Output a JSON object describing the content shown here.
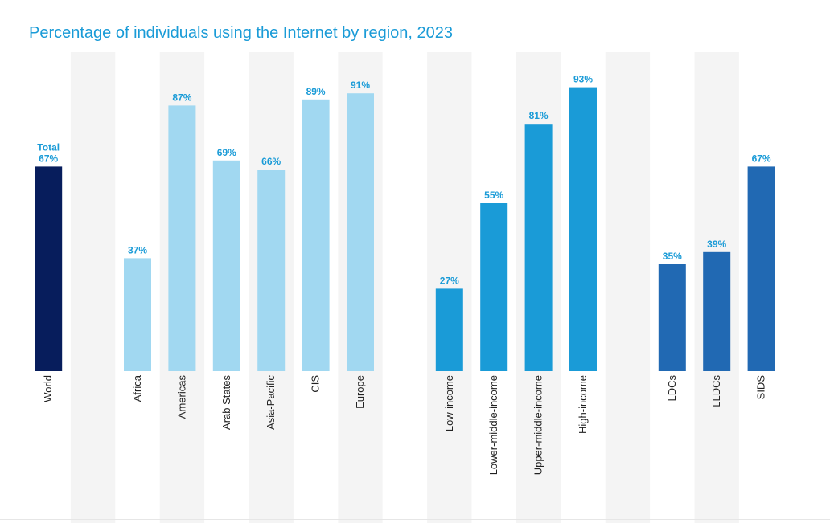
{
  "title": "Percentage of individuals using the Internet by region, 2023",
  "colors": {
    "world": "#071d5c",
    "regions": "#a1d8f1",
    "income": "#1a9bd7",
    "groups": "#2169b3",
    "label": "#1a9bd7",
    "band": "#f4f4f4"
  },
  "chart_data": {
    "type": "bar",
    "title": "Percentage of individuals using the Internet by region, 2023",
    "xlabel": "",
    "ylabel": "",
    "ylim": [
      0,
      100
    ],
    "grid": false,
    "categories": [
      "World",
      "Africa",
      "Americas",
      "Arab States",
      "Asia-Pacific",
      "CIS",
      "Europe",
      "Low-income",
      "Lower-middle-income",
      "Upper-middle-income",
      "High-income",
      "LDCs",
      "LLDCs",
      "SIDS"
    ],
    "values": [
      67,
      37,
      87,
      69,
      66,
      89,
      91,
      27,
      55,
      81,
      93,
      35,
      39,
      67
    ],
    "groups": [
      "world",
      "regions",
      "regions",
      "regions",
      "regions",
      "regions",
      "regions",
      "income",
      "income",
      "income",
      "income",
      "groups",
      "groups",
      "groups"
    ],
    "data_labels": [
      "67%",
      "37%",
      "87%",
      "69%",
      "66%",
      "89%",
      "91%",
      "27%",
      "55%",
      "81%",
      "93%",
      "35%",
      "39%",
      "67%"
    ],
    "extra_labels": {
      "World": "Total"
    }
  }
}
